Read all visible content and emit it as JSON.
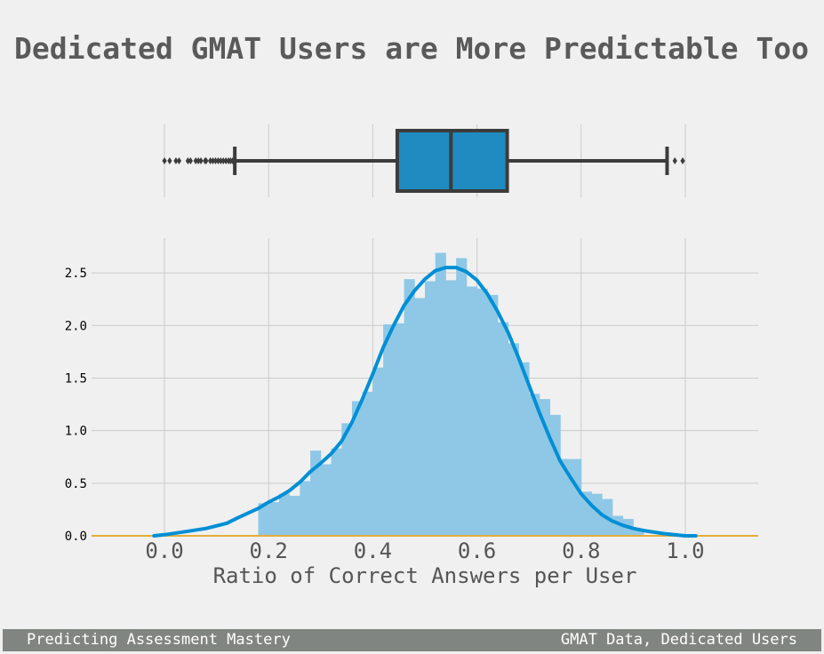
{
  "title": "Dedicated GMAT Users are More Predictable Too",
  "footer": {
    "left": "Predicting Assessment Mastery",
    "right": "GMAT Data, Dedicated Users"
  },
  "colors": {
    "background": "#f0f0f0",
    "grid": "#cbcbcb",
    "box_fill": "#1f8bc0",
    "box_edge": "#3c3c3c",
    "hist_fill": "#8ec8e6",
    "kde_line": "#008fd5",
    "baseline": "#e5ae38",
    "footer_bg": "#808582",
    "title_text": "#5a5a5a"
  },
  "chart_data": [
    {
      "type": "box",
      "orientation": "horizontal",
      "xlim": [
        -0.14,
        1.14
      ],
      "x_gridlines": [
        0.0,
        0.2,
        0.4,
        0.6,
        0.8,
        1.0
      ],
      "whisker_low": 0.135,
      "q1": 0.447,
      "median": 0.55,
      "q3": 0.658,
      "whisker_high": 0.965,
      "outliers": [
        0.0,
        0.01,
        0.022,
        0.028,
        0.045,
        0.05,
        0.06,
        0.065,
        0.07,
        0.078,
        0.08,
        0.088,
        0.093,
        0.098,
        0.103,
        0.108,
        0.113,
        0.118,
        0.123,
        0.127,
        0.131,
        0.98,
        0.995
      ]
    },
    {
      "type": "histogram",
      "xlabel": "Ratio of Correct Answers per User",
      "ylabel": "",
      "xlim": [
        -0.14,
        1.14
      ],
      "ylim": [
        0,
        2.83
      ],
      "x_ticks": [
        "0.0",
        "0.2",
        "0.4",
        "0.6",
        "0.8",
        "1.0"
      ],
      "x_tick_values": [
        0.0,
        0.2,
        0.4,
        0.6,
        0.8,
        1.0
      ],
      "y_ticks": [
        "0.0",
        "0.5",
        "1.0",
        "1.5",
        "2.0",
        "2.5"
      ],
      "y_tick_values": [
        0.0,
        0.5,
        1.0,
        1.5,
        2.0,
        2.5
      ],
      "grid": true,
      "bins": [
        {
          "x0": 0.18,
          "x1": 0.2,
          "density": 0.31
        },
        {
          "x0": 0.2,
          "x1": 0.22,
          "density": 0.32
        },
        {
          "x0": 0.22,
          "x1": 0.24,
          "density": 0.4
        },
        {
          "x0": 0.24,
          "x1": 0.26,
          "density": 0.38
        },
        {
          "x0": 0.26,
          "x1": 0.28,
          "density": 0.52
        },
        {
          "x0": 0.28,
          "x1": 0.3,
          "density": 0.81
        },
        {
          "x0": 0.3,
          "x1": 0.32,
          "density": 0.68
        },
        {
          "x0": 0.32,
          "x1": 0.34,
          "density": 0.83
        },
        {
          "x0": 0.34,
          "x1": 0.36,
          "density": 1.07
        },
        {
          "x0": 0.36,
          "x1": 0.38,
          "density": 1.28
        },
        {
          "x0": 0.38,
          "x1": 0.4,
          "density": 1.37
        },
        {
          "x0": 0.4,
          "x1": 0.42,
          "density": 1.6
        },
        {
          "x0": 0.42,
          "x1": 0.44,
          "density": 2.01
        },
        {
          "x0": 0.44,
          "x1": 0.46,
          "density": 2.02
        },
        {
          "x0": 0.46,
          "x1": 0.48,
          "density": 2.44
        },
        {
          "x0": 0.48,
          "x1": 0.5,
          "density": 2.26
        },
        {
          "x0": 0.5,
          "x1": 0.52,
          "density": 2.42
        },
        {
          "x0": 0.52,
          "x1": 0.54,
          "density": 2.69
        },
        {
          "x0": 0.54,
          "x1": 0.56,
          "density": 2.43
        },
        {
          "x0": 0.56,
          "x1": 0.58,
          "density": 2.64
        },
        {
          "x0": 0.58,
          "x1": 0.6,
          "density": 2.37
        },
        {
          "x0": 0.6,
          "x1": 0.62,
          "density": 2.35
        },
        {
          "x0": 0.62,
          "x1": 0.64,
          "density": 2.29
        },
        {
          "x0": 0.64,
          "x1": 0.66,
          "density": 2.03
        },
        {
          "x0": 0.66,
          "x1": 0.68,
          "density": 1.83
        },
        {
          "x0": 0.68,
          "x1": 0.7,
          "density": 1.65
        },
        {
          "x0": 0.7,
          "x1": 0.72,
          "density": 1.35
        },
        {
          "x0": 0.72,
          "x1": 0.74,
          "density": 1.3
        },
        {
          "x0": 0.74,
          "x1": 0.76,
          "density": 1.15
        },
        {
          "x0": 0.76,
          "x1": 0.78,
          "density": 0.73
        },
        {
          "x0": 0.78,
          "x1": 0.8,
          "density": 0.73
        },
        {
          "x0": 0.8,
          "x1": 0.82,
          "density": 0.42
        },
        {
          "x0": 0.82,
          "x1": 0.84,
          "density": 0.4
        },
        {
          "x0": 0.84,
          "x1": 0.86,
          "density": 0.35
        },
        {
          "x0": 0.86,
          "x1": 0.88,
          "density": 0.19
        },
        {
          "x0": 0.88,
          "x1": 0.9,
          "density": 0.16
        },
        {
          "x0": 0.9,
          "x1": 0.92,
          "density": 0.07
        }
      ],
      "kde": {
        "x": [
          -0.02,
          0.0,
          0.04,
          0.08,
          0.12,
          0.14,
          0.18,
          0.2,
          0.22,
          0.24,
          0.26,
          0.28,
          0.3,
          0.32,
          0.34,
          0.36,
          0.38,
          0.4,
          0.42,
          0.44,
          0.46,
          0.48,
          0.5,
          0.52,
          0.54,
          0.56,
          0.58,
          0.6,
          0.62,
          0.64,
          0.66,
          0.68,
          0.7,
          0.72,
          0.74,
          0.76,
          0.78,
          0.8,
          0.82,
          0.84,
          0.86,
          0.88,
          0.9,
          0.92,
          0.96,
          1.0,
          1.02
        ],
        "y": [
          0.0,
          0.01,
          0.04,
          0.07,
          0.12,
          0.17,
          0.26,
          0.32,
          0.37,
          0.43,
          0.51,
          0.61,
          0.69,
          0.78,
          0.9,
          1.08,
          1.3,
          1.54,
          1.79,
          2.0,
          2.19,
          2.33,
          2.44,
          2.52,
          2.55,
          2.55,
          2.51,
          2.43,
          2.3,
          2.13,
          1.93,
          1.69,
          1.43,
          1.17,
          0.93,
          0.71,
          0.55,
          0.4,
          0.29,
          0.2,
          0.14,
          0.1,
          0.07,
          0.05,
          0.02,
          0.0,
          0.0
        ]
      }
    }
  ]
}
